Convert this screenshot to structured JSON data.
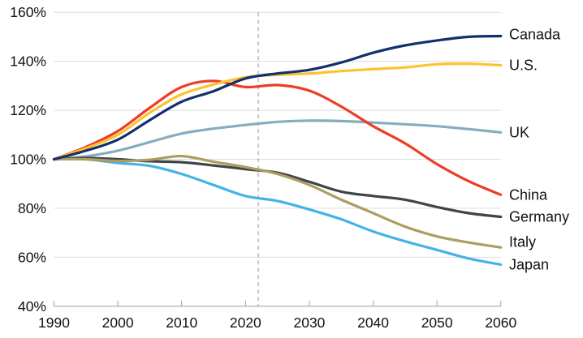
{
  "chart_data": {
    "type": "line",
    "title": "",
    "xlabel": "",
    "ylabel": "",
    "xlim": [
      1990,
      2060
    ],
    "ylim": [
      40,
      160
    ],
    "grid": "horizontal",
    "legend_position": "right-edge-direct-labels",
    "x": [
      1990,
      1995,
      2000,
      2005,
      2010,
      2015,
      2020,
      2025,
      2030,
      2035,
      2040,
      2045,
      2050,
      2055,
      2060
    ],
    "x_ticks": [
      {
        "value": 1990,
        "label": "1990"
      },
      {
        "value": 2000,
        "label": "2000"
      },
      {
        "value": 2010,
        "label": "2010"
      },
      {
        "value": 2020,
        "label": "2020"
      },
      {
        "value": 2030,
        "label": "2030"
      },
      {
        "value": 2040,
        "label": "2040"
      },
      {
        "value": 2050,
        "label": "2050"
      },
      {
        "value": 2060,
        "label": "2060"
      }
    ],
    "y_ticks": [
      {
        "value": 40,
        "label": "40%"
      },
      {
        "value": 60,
        "label": "60%"
      },
      {
        "value": 80,
        "label": "80%"
      },
      {
        "value": 100,
        "label": "100%"
      },
      {
        "value": 120,
        "label": "120%"
      },
      {
        "value": 140,
        "label": "140%"
      },
      {
        "value": 160,
        "label": "160%"
      }
    ],
    "annotation_line": {
      "x": 2022,
      "style": "dashed",
      "color": "#a3a3a3"
    },
    "series": [
      {
        "name": "UK",
        "color": "#85adc0",
        "values": [
          100,
          101.2,
          103.5,
          107,
          110.5,
          112.5,
          114,
          115.3,
          115.8,
          115.6,
          115,
          114.3,
          113.5,
          112.3,
          111
        ]
      },
      {
        "name": "Japan",
        "color": "#43b3e7",
        "values": [
          100,
          100,
          98.5,
          97.3,
          94,
          89.5,
          85,
          83,
          79.5,
          75.5,
          70.5,
          66.5,
          63,
          59.5,
          57
        ]
      },
      {
        "name": "Germany",
        "color": "#3f4448",
        "values": [
          100,
          100.5,
          100,
          99.2,
          98.8,
          97.5,
          96,
          94.5,
          90.8,
          86.8,
          85,
          83.5,
          80.5,
          78,
          76.5
        ]
      },
      {
        "name": "Italy",
        "color": "#ad9d62",
        "values": [
          100,
          100,
          99.3,
          99.8,
          101.3,
          99,
          96.8,
          94,
          89.5,
          83.5,
          78,
          72.5,
          68.5,
          66,
          64
        ]
      },
      {
        "name": "China",
        "color": "#ee3c26",
        "values": [
          100,
          105,
          111.5,
          121,
          129.5,
          132,
          129.5,
          130.3,
          128,
          121.5,
          113.5,
          106.5,
          98,
          91,
          85.5
        ]
      },
      {
        "name": "U.S.",
        "color": "#fdc32f",
        "values": [
          100,
          104.5,
          110,
          119,
          126.5,
          130.5,
          133.5,
          134.5,
          135,
          136,
          136.8,
          137.5,
          138.8,
          139,
          138.4
        ]
      },
      {
        "name": "Canada",
        "color": "#132f6d",
        "values": [
          100,
          103.5,
          108,
          116,
          123.5,
          127.8,
          133,
          135,
          136.5,
          139.5,
          143.5,
          146.5,
          148.5,
          150,
          150.3
        ]
      }
    ]
  },
  "colors": {
    "background": "#ffffff",
    "gridline": "#dcdcdc",
    "axis": "#a3a3a3",
    "dashed_line": "#a3a3a3",
    "text": "#111111"
  }
}
